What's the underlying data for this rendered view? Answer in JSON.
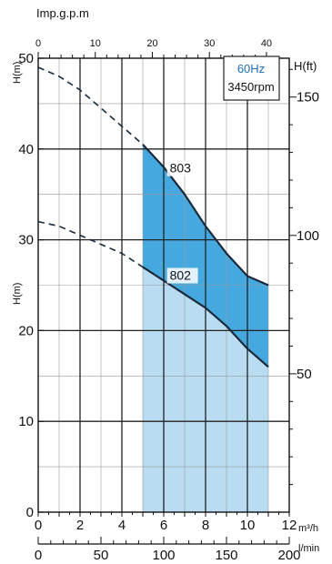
{
  "chart_data": {
    "type": "line",
    "top_axis_label": "Imp.g.p.m",
    "top_ticks": [
      0,
      10,
      20,
      30,
      40
    ],
    "left_label_top": "H(m)",
    "left_label_mid": "H(m)",
    "left_ticks": [
      0,
      10,
      20,
      30,
      40,
      50
    ],
    "right_label": "H(ft)",
    "right_ticks": [
      50,
      100,
      150
    ],
    "bottom1_unit": "m³/h",
    "bottom1_ticks": [
      0,
      2,
      4,
      6,
      8,
      10,
      12
    ],
    "bottom2_unit": "l/min",
    "bottom2_ticks": [
      0,
      50,
      100,
      150,
      200
    ],
    "speed_badge": {
      "freq": "60Hz",
      "rpm": "3450rpm",
      "freq_color": "#1f6fb5"
    },
    "xlim": [
      0,
      12
    ],
    "ylim": [
      0,
      50
    ],
    "operating_range": [
      5,
      11
    ],
    "colors": {
      "upper_band": "#45a9e0",
      "lower_band": "#b9dcf2",
      "grid": "#222222",
      "curve": "#1a2a3a"
    },
    "series": [
      {
        "name": "803",
        "x": [
          0,
          1,
          2,
          3,
          4,
          5,
          6,
          7,
          8,
          9,
          10,
          11
        ],
        "y": [
          49,
          48,
          46.5,
          44.5,
          42.5,
          40.5,
          38,
          35,
          31.5,
          28.5,
          26,
          25
        ]
      },
      {
        "name": "802",
        "x": [
          0,
          1,
          2,
          3,
          4,
          5,
          6,
          7,
          8,
          9,
          10,
          11
        ],
        "y": [
          32,
          31.5,
          30.5,
          29.5,
          28.5,
          27,
          25.5,
          24,
          22.5,
          20.5,
          18,
          16
        ]
      }
    ]
  }
}
